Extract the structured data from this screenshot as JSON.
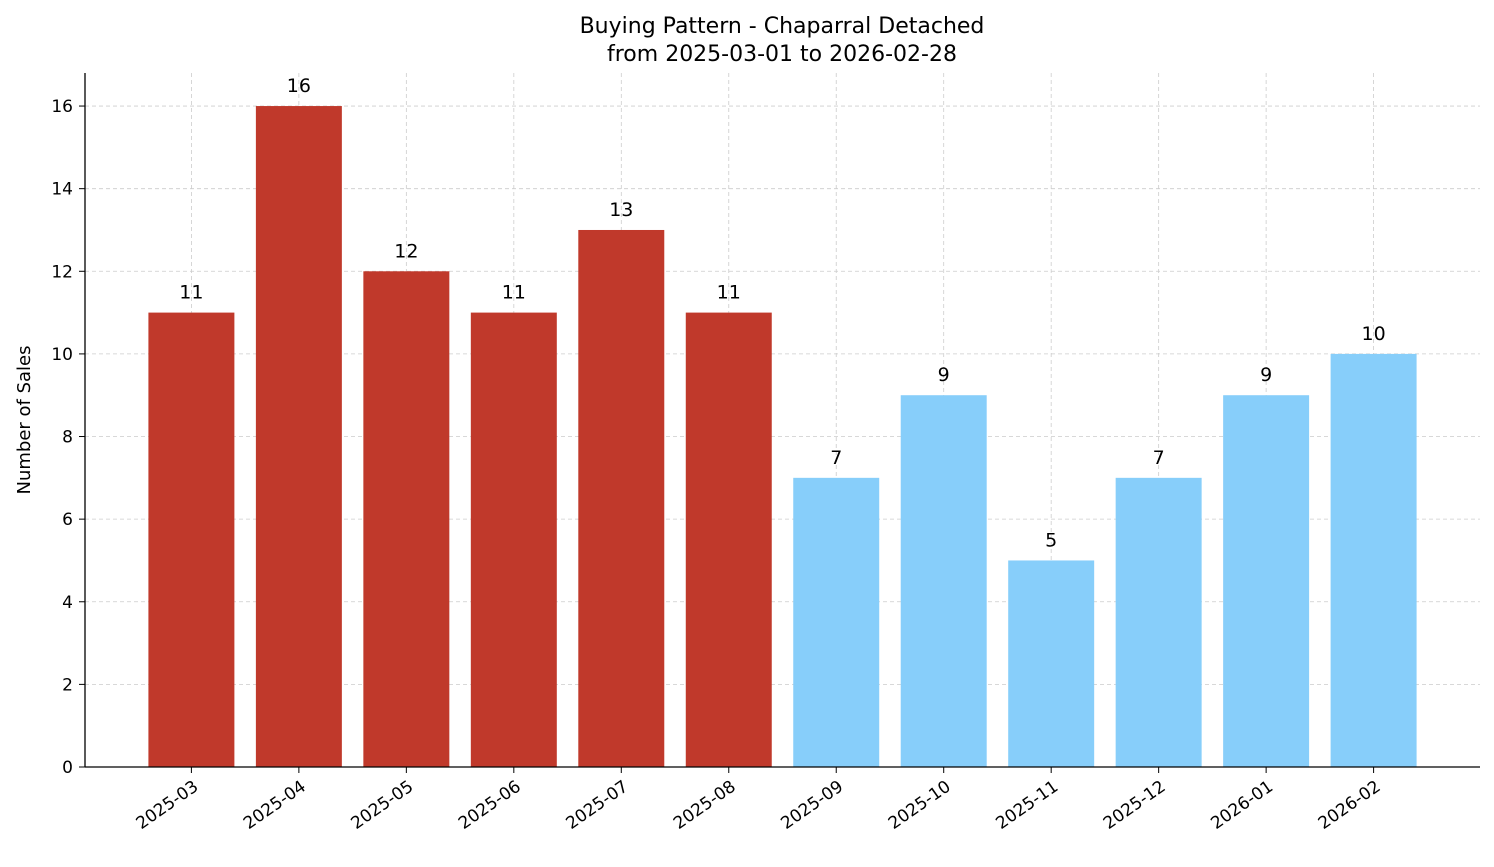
{
  "chart_data": {
    "type": "bar",
    "title": "Buying Pattern - Chaparral Detached",
    "subtitle": "from 2025-03-01 to 2026-02-28",
    "xlabel": "",
    "ylabel": "Number of Sales",
    "categories": [
      "2025-03",
      "2025-04",
      "2025-05",
      "2025-06",
      "2025-07",
      "2025-08",
      "2025-09",
      "2025-10",
      "2025-11",
      "2025-12",
      "2026-01",
      "2026-02"
    ],
    "values": [
      11,
      16,
      12,
      11,
      13,
      11,
      7,
      9,
      5,
      7,
      9,
      10
    ],
    "bar_colors": [
      "#c0392b",
      "#c0392b",
      "#c0392b",
      "#c0392b",
      "#c0392b",
      "#c0392b",
      "#87cefa",
      "#87cefa",
      "#87cefa",
      "#87cefa",
      "#87cefa",
      "#87cefa"
    ],
    "ylim": [
      0,
      16.8
    ],
    "yticks": [
      0,
      2,
      4,
      6,
      8,
      10,
      12,
      14,
      16
    ],
    "grid": true,
    "data_labels": true
  }
}
